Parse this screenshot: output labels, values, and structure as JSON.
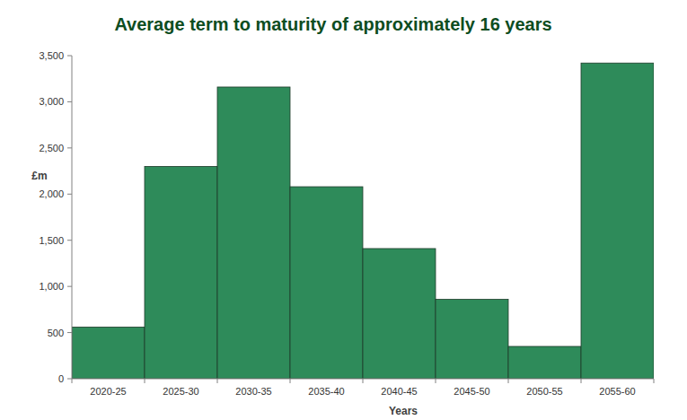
{
  "chart_data": {
    "type": "bar",
    "title": "Average term to maturity of approximately 16 years",
    "x_label": "Years",
    "y_label": "£m",
    "categories": [
      "2020-25",
      "2025-30",
      "2030-35",
      "2035-40",
      "2040-45",
      "2045-50",
      "2050-55",
      "2055-60"
    ],
    "values": [
      560,
      2300,
      3160,
      2080,
      1410,
      860,
      350,
      3420
    ],
    "color": "#2e8b5a",
    "ylim": [
      0,
      3500
    ],
    "yticks": [
      0,
      500,
      {
        "value": 1000,
        "label": "1,000"
      },
      {
        "value": 1500,
        "label": "1,500"
      },
      {
        "value": 2000,
        "label": "2,000"
      },
      {
        "value": 2500,
        "label": "2,500"
      },
      {
        "value": 3000,
        "label": "3,000"
      },
      {
        "value": 3500,
        "label": "3,500"
      }
    ],
    "grid": false
  }
}
